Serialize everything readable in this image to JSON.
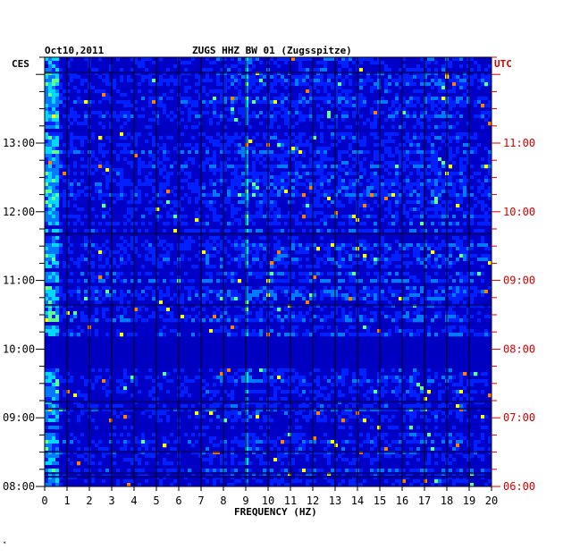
{
  "chart_data": {
    "type": "heatmap",
    "title_left": "Oct10,2011",
    "title_center": "ZUGS HHZ BW 01 (Zugsspitze)",
    "left_label": "CES",
    "right_label": "UTC",
    "xlabel": "FREQUENCY (HZ)",
    "xlim": [
      0,
      20
    ],
    "x_ticks": [
      "0",
      "1",
      "2",
      "3",
      "4",
      "5",
      "6",
      "7",
      "8",
      "9",
      "10",
      "11",
      "12",
      "13",
      "14",
      "15",
      "16",
      "17",
      "18",
      "19",
      "20"
    ],
    "left_ticks": [
      "13:00",
      "12:00",
      "11:00",
      "10:00",
      "09:00",
      "08:00"
    ],
    "right_ticks": [
      "11:00",
      "10:00",
      "09:00",
      "08:00",
      "07:00",
      "06:00"
    ],
    "time_range_local": [
      "08:00",
      "14:15"
    ],
    "colormap": [
      "#00007a",
      "#0000c8",
      "#0020ff",
      "#0078ff",
      "#00d8ff",
      "#60ff90",
      "#ffff00",
      "#ff8000"
    ],
    "background_color": "#0000c0",
    "features": [
      {
        "label": "persistent low-frequency band",
        "x_range": [
          0,
          0.6
        ]
      },
      {
        "label": "narrow line",
        "x_range": [
          8.9,
          9.1
        ]
      },
      {
        "label": "quiet interval",
        "time_local": [
          "09:45",
          "10:10"
        ]
      }
    ]
  },
  "footer_mark": "*"
}
